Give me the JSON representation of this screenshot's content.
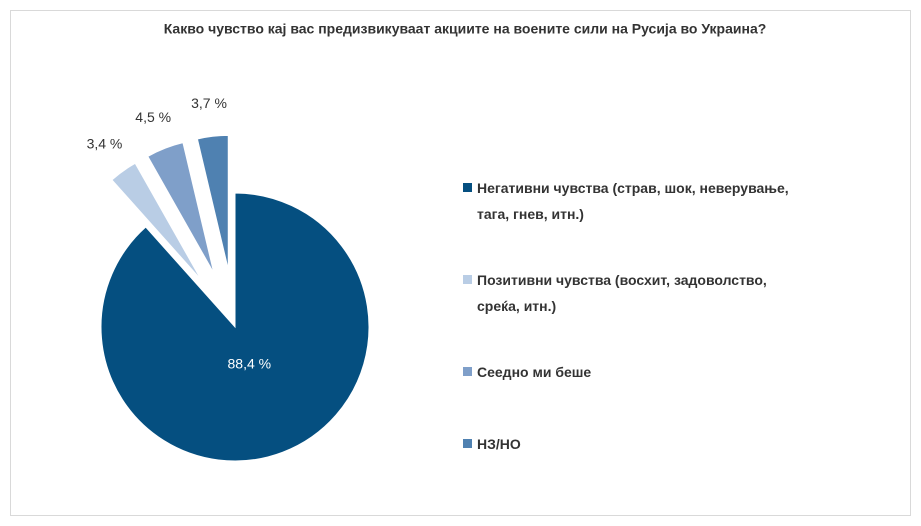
{
  "chart_data": {
    "type": "pie",
    "title": "Какво чувство кај вас предизвикуваат акциите на воените сили на Русија во Украина?",
    "categories": [
      "Негативни чувства (страв, шок, неверување, тага, гнев, итн.)",
      "Позитивни чувства (восхит, задоволство, среќа, итн.)",
      "Сеедно ми беше",
      "НЗ/НО"
    ],
    "values": [
      88.4,
      3.4,
      4.5,
      3.7
    ],
    "value_labels": [
      "88,4 %",
      "3,4 %",
      "4,5 %",
      "3,7 %"
    ],
    "colors": [
      "#054f80",
      "#b9cde5",
      "#7f9fc9",
      "#4f81b1"
    ],
    "legend": "right"
  }
}
